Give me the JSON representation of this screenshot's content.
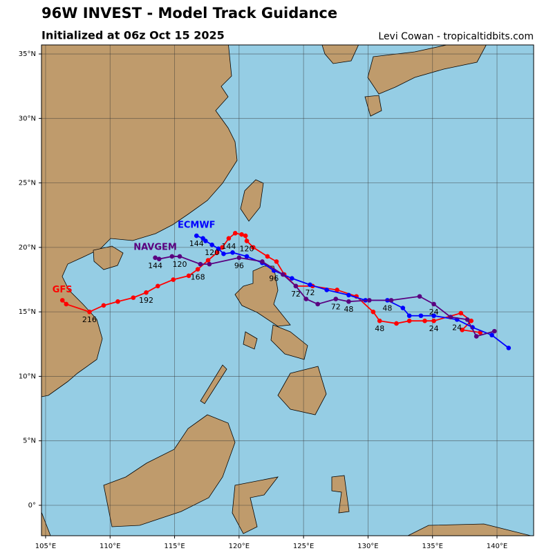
{
  "chart_data": {
    "type": "track",
    "title": "96W INVEST - Model Track Guidance",
    "subtitle": "Initialized at 06z Oct 15 2025",
    "credit": "Levi Cowan - tropicaltidbits.com",
    "xlim": [
      104.68,
      142.84
    ],
    "ylim": [
      -2.36,
      35.7
    ],
    "xticks": [
      {
        "value": 105,
        "label": "105°E"
      },
      {
        "value": 110,
        "label": "110°E"
      },
      {
        "value": 115,
        "label": "115°E"
      },
      {
        "value": 120,
        "label": "120°E"
      },
      {
        "value": 125,
        "label": "125°E"
      },
      {
        "value": 130,
        "label": "130°E"
      },
      {
        "value": 135,
        "label": "135°E"
      },
      {
        "value": 140,
        "label": "140°E"
      }
    ],
    "yticks": [
      {
        "value": 0,
        "label": "0°"
      },
      {
        "value": 5,
        "label": "5°N"
      },
      {
        "value": 10,
        "label": "10°N"
      },
      {
        "value": 15,
        "label": "15°N"
      },
      {
        "value": 20,
        "label": "20°N"
      },
      {
        "value": 25,
        "label": "25°N"
      },
      {
        "value": 30,
        "label": "30°N"
      },
      {
        "value": 35,
        "label": "35°N"
      }
    ],
    "grid": true,
    "series": [
      {
        "name": "GFS",
        "color": "#ff0000",
        "lon": [
          138.7,
          137.3,
          138.0,
          137.2,
          135.1,
          134.4,
          133.2,
          132.2,
          130.9,
          130.4,
          129.1,
          127.6,
          125.7,
          124.4,
          123.5,
          122.9,
          122.2,
          121.1,
          120.6,
          120.5,
          120.2,
          119.7,
          119.2,
          118.7,
          118.3,
          117.6,
          116.8,
          116.1,
          114.9,
          113.7,
          112.8,
          111.8,
          110.6,
          109.5,
          108.4,
          106.6,
          106.3
        ],
        "lat": [
          13.4,
          13.6,
          14.3,
          14.9,
          14.3,
          14.3,
          14.3,
          14.1,
          14.3,
          15.0,
          16.2,
          16.7,
          17.0,
          17.0,
          17.9,
          18.9,
          19.3,
          20.0,
          20.5,
          20.9,
          21.0,
          21.1,
          20.7,
          20.0,
          19.6,
          19.0,
          18.3,
          17.8,
          17.5,
          17.0,
          16.5,
          16.1,
          15.8,
          15.5,
          15.0,
          15.6,
          15.9
        ],
        "hours": [
          null,
          null,
          null,
          null,
          24,
          null,
          null,
          null,
          48,
          null,
          null,
          null,
          null,
          72,
          null,
          null,
          null,
          null,
          120,
          null,
          null,
          null,
          144,
          null,
          null,
          null,
          168,
          null,
          null,
          null,
          192,
          null,
          null,
          null,
          216,
          null,
          null
        ]
      },
      {
        "name": "ECMWF",
        "color": "#0000ff",
        "lon": [
          140.9,
          139.6,
          138.1,
          136.9,
          135.1,
          134.1,
          133.2,
          132.7,
          131.5,
          129.8,
          128.5,
          126.8,
          125.5,
          124.1,
          122.7,
          121.8,
          120.6,
          119.5,
          118.8,
          118.4,
          117.9,
          117.4,
          117.2,
          116.7
        ],
        "lat": [
          12.2,
          13.2,
          13.8,
          14.4,
          14.7,
          14.7,
          14.7,
          15.3,
          15.9,
          15.9,
          16.3,
          16.7,
          17.1,
          17.6,
          18.2,
          18.8,
          19.3,
          19.6,
          19.5,
          19.9,
          20.2,
          20.5,
          20.7,
          20.9
        ],
        "hours": [
          null,
          null,
          null,
          24,
          null,
          null,
          null,
          null,
          48,
          null,
          null,
          null,
          72,
          null,
          96,
          null,
          null,
          null,
          null,
          null,
          120,
          null,
          null,
          144
        ]
      },
      {
        "name": "NAVGEM",
        "color": "#5a0080",
        "lon": [
          139.8,
          138.4,
          137.7,
          136.4,
          135.1,
          134.0,
          131.8,
          130.1,
          128.5,
          127.5,
          126.1,
          125.2,
          124.4,
          123.4,
          121.8,
          120.0,
          117.7,
          117.0,
          115.4,
          114.8,
          113.8,
          113.5
        ],
        "lat": [
          13.5,
          13.1,
          14.4,
          14.6,
          15.6,
          16.2,
          15.9,
          15.9,
          15.8,
          16.0,
          15.6,
          16.0,
          17.0,
          17.9,
          18.9,
          19.2,
          18.7,
          18.7,
          19.3,
          19.3,
          19.1,
          19.2
        ],
        "hours": [
          null,
          null,
          null,
          null,
          24,
          null,
          null,
          null,
          48,
          72,
          null,
          null,
          null,
          null,
          null,
          96,
          null,
          null,
          120,
          null,
          null,
          144
        ]
      }
    ]
  }
}
